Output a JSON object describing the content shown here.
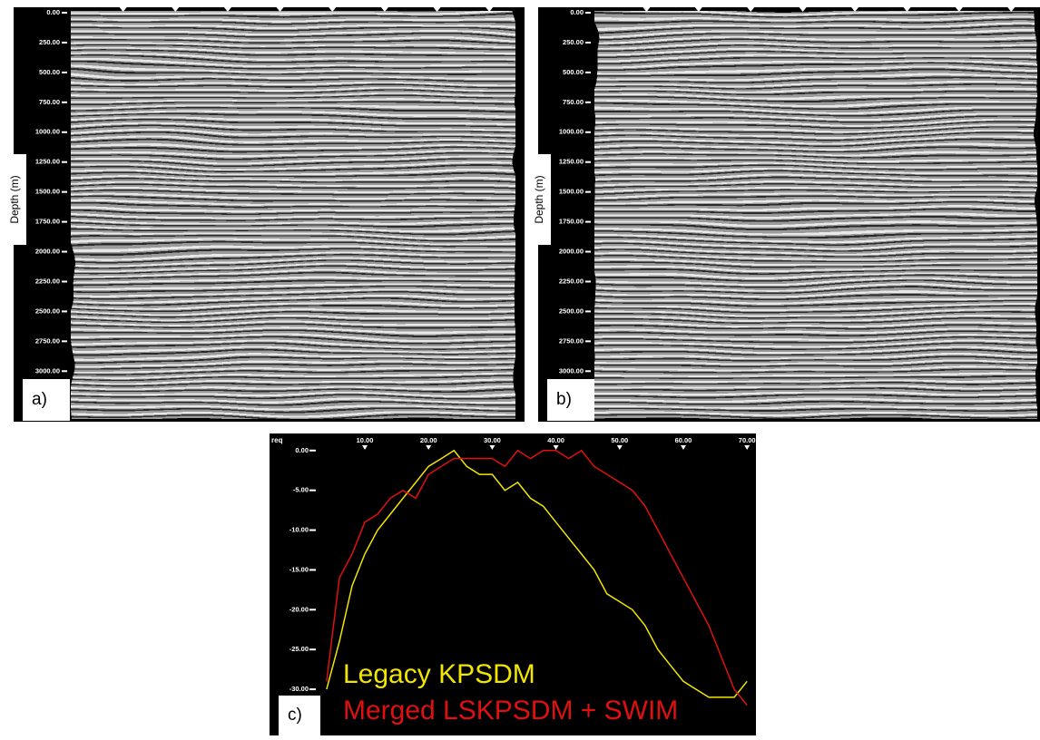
{
  "chart_data": [
    {
      "type": "image",
      "panel_label": "a)",
      "ylabel": "Depth (m)",
      "ylim": [
        0,
        3400
      ],
      "yticks": [
        {
          "value": 0,
          "label": "0.00"
        },
        {
          "value": 250,
          "label": "250.00"
        },
        {
          "value": 500,
          "label": "500.00"
        },
        {
          "value": 750,
          "label": "750.00"
        },
        {
          "value": 1000,
          "label": "1000.00"
        },
        {
          "value": 1250,
          "label": "1250.00"
        },
        {
          "value": 1500,
          "label": "1500.00"
        },
        {
          "value": 1750,
          "label": "1750.00"
        },
        {
          "value": 2000,
          "label": "2000.00"
        },
        {
          "value": 2250,
          "label": "2250.00"
        },
        {
          "value": 2500,
          "label": "2500.00"
        },
        {
          "value": 2750,
          "label": "2750.00"
        },
        {
          "value": 3000,
          "label": "3000.00"
        }
      ]
    },
    {
      "type": "image",
      "panel_label": "b)",
      "ylabel": "Depth (m)",
      "ylim": [
        0,
        3400
      ],
      "yticks": [
        {
          "value": 0,
          "label": "0.00"
        },
        {
          "value": 250,
          "label": "250.00"
        },
        {
          "value": 500,
          "label": "500.00"
        },
        {
          "value": 750,
          "label": "750.00"
        },
        {
          "value": 1000,
          "label": "1000.00"
        },
        {
          "value": 1250,
          "label": "1250.00"
        },
        {
          "value": 1500,
          "label": "1500.00"
        },
        {
          "value": 1750,
          "label": "1750.00"
        },
        {
          "value": 2000,
          "label": "2000.00"
        },
        {
          "value": 2250,
          "label": "2250.00"
        },
        {
          "value": 2500,
          "label": "2500.00"
        },
        {
          "value": 2750,
          "label": "2750.00"
        },
        {
          "value": 3000,
          "label": "3000.00"
        }
      ]
    },
    {
      "type": "line",
      "panel_label": "c)",
      "xlabel": "req",
      "xlim": [
        3.3,
        71.4
      ],
      "ylim": [
        -35.8,
        1
      ],
      "xticks": [
        {
          "value": 10,
          "label": "10.00"
        },
        {
          "value": 20,
          "label": "20.00"
        },
        {
          "value": 30,
          "label": "30.00"
        },
        {
          "value": 40,
          "label": "40.00"
        },
        {
          "value": 50,
          "label": "50.00"
        },
        {
          "value": 60,
          "label": "60.00"
        },
        {
          "value": 70,
          "label": "70.00"
        }
      ],
      "yticks": [
        {
          "value": 0,
          "label": "0.00"
        },
        {
          "value": -5,
          "label": "-5.00"
        },
        {
          "value": -10,
          "label": "-10.00"
        },
        {
          "value": -15,
          "label": "-15.00"
        },
        {
          "value": -20,
          "label": "-20.00"
        },
        {
          "value": -25,
          "label": "-25.00"
        },
        {
          "value": -30,
          "label": "-30.00"
        }
      ],
      "x": [
        4,
        6,
        8,
        10,
        12,
        14,
        16,
        18,
        20,
        22,
        24,
        26,
        28,
        30,
        32,
        34,
        36,
        38,
        40,
        42,
        44,
        46,
        48,
        50,
        52,
        54,
        56,
        58,
        60,
        62,
        64,
        66,
        68,
        70
      ],
      "series": [
        {
          "name": "Legacy KPSDM",
          "color": "#f2e600",
          "values": [
            -30,
            -24,
            -17,
            -13,
            -10,
            -8,
            -6,
            -4,
            -2,
            -1,
            0,
            -2,
            -3,
            -3,
            -5,
            -4,
            -6,
            -7,
            -9,
            -11,
            -13,
            -15,
            -18,
            -19,
            -20,
            -22,
            -25,
            -27,
            -29,
            -30,
            -31,
            -31,
            -31,
            -29
          ]
        },
        {
          "name": "Merged LSKPSDM + SWIM",
          "color": "#e01010",
          "values": [
            -29,
            -16,
            -13,
            -9,
            -8,
            -6,
            -5,
            -6,
            -3,
            -2,
            -1,
            -1,
            -1,
            -1,
            -2,
            0,
            -1,
            0,
            0,
            -1,
            0,
            -2,
            -3,
            -4,
            -5,
            -7,
            -10,
            -13,
            -16,
            -19,
            -22,
            -26,
            -30,
            -32
          ]
        }
      ]
    }
  ]
}
